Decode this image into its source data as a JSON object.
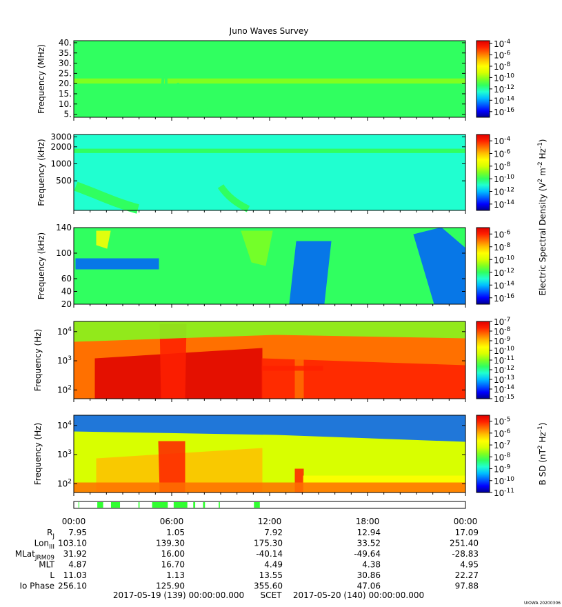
{
  "title": "Juno Waves Survey",
  "credit": "UIOWA 20200306",
  "colors": {
    "spectrum": [
      "#000090",
      "#0000ff",
      "#0060ff",
      "#00c0ff",
      "#20ffd0",
      "#30ff60",
      "#80ff20",
      "#d8ff00",
      "#ffff00",
      "#ffc000",
      "#ff7000",
      "#ff2000",
      "#e00000"
    ],
    "fill_sample": "#30ff90"
  },
  "chart_data": [
    {
      "type": "heatmap",
      "name": "mhz-panel",
      "ylabel": "Frequency (MHz)",
      "yticks": [
        "40.",
        "35.",
        "30.",
        "25.",
        "20.",
        "15.",
        "10.",
        "5."
      ],
      "ytick_values": [
        40,
        35,
        30,
        25,
        20,
        15,
        10,
        5
      ],
      "ylim": [
        3.5,
        41
      ],
      "yscale": "linear",
      "colorbar": {
        "ticks": [
          "-4",
          "-6",
          "-8",
          "-10",
          "-12",
          "-14",
          "-16"
        ],
        "tick_values": [
          -4,
          -6,
          -8,
          -10,
          -12,
          -14,
          -16
        ],
        "range": [
          -17,
          -3.5
        ]
      },
      "background_level": -11.5,
      "bands": [
        {
          "y": [
            20,
            22.5
          ],
          "level": -10.5
        }
      ]
    },
    {
      "type": "heatmap",
      "name": "khz-high-panel",
      "ylabel": "Frequency (kHz)",
      "yticks": [
        "3000",
        "2000",
        "1000",
        "500"
      ],
      "ytick_values": [
        3000,
        2000,
        1000,
        500
      ],
      "ylim": [
        150,
        3300
      ],
      "yscale": "log",
      "colorbar": {
        "ticks": [
          "-4",
          "-6",
          "-8",
          "-10",
          "-12",
          "-14"
        ],
        "tick_values": [
          -4,
          -6,
          -8,
          -10,
          -12,
          -14
        ],
        "range": [
          -15,
          -3
        ]
      },
      "background_level": -10.8,
      "bands": [
        {
          "y": [
            1550,
            1850
          ],
          "level": -10
        }
      ]
    },
    {
      "type": "heatmap",
      "name": "khz-low-panel",
      "ylabel": "Frequency (kHz)",
      "yticks": [
        "140",
        "100",
        "60",
        "40",
        "20"
      ],
      "ytick_values": [
        140,
        100,
        60,
        40,
        20
      ],
      "ylim": [
        20,
        140
      ],
      "yscale": "linear",
      "colorbar": {
        "ticks": [
          "-6",
          "-8",
          "-10",
          "-12",
          "-14",
          "-16"
        ],
        "tick_values": [
          -6,
          -8,
          -10,
          -12,
          -14,
          -16
        ],
        "range": [
          -17,
          -5
        ]
      },
      "background_level": -12.5,
      "bands": []
    },
    {
      "type": "heatmap",
      "name": "hz-e-panel",
      "ylabel": "Frequency (Hz)",
      "yticks": [
        "4",
        "3",
        "2"
      ],
      "ytick_values": [
        4,
        3,
        2
      ],
      "ylim": [
        1.7,
        4.35
      ],
      "yscale": "log-exponent",
      "colorbar": {
        "ticks": [
          "-7",
          "-8",
          "-9",
          "-10",
          "-11",
          "-12",
          "-13",
          "-14",
          "-15"
        ],
        "tick_values": [
          -7,
          -8,
          -9,
          -10,
          -11,
          -12,
          -13,
          -14,
          -15
        ],
        "range": [
          -15,
          -7
        ]
      },
      "background_level": -8.5,
      "bands": []
    },
    {
      "type": "heatmap",
      "name": "hz-b-panel",
      "ylabel": "Frequency (Hz)",
      "yticks": [
        "4",
        "3",
        "2"
      ],
      "ytick_values": [
        4,
        3,
        2
      ],
      "ylim": [
        1.7,
        4.35
      ],
      "yscale": "log-exponent",
      "colorbar": {
        "ticks": [
          "-5",
          "-6",
          "-7",
          "-8",
          "-9",
          "-10",
          "-11"
        ],
        "tick_values": [
          -5,
          -6,
          -7,
          -8,
          -9,
          -10,
          -11
        ],
        "range": [
          -11,
          -4.5
        ]
      },
      "background_level": -7,
      "bands": []
    }
  ],
  "colorbar_labels": {
    "electric": {
      "pre": "Electric Spectral Density (V",
      "exp1": "2",
      "mid": " m",
      "exp2": "-2",
      "mid2": " Hz",
      "exp3": "-1",
      "post": ")"
    },
    "magnetic": {
      "pre": "B SD (nT",
      "exp1": "2",
      "mid": " Hz",
      "exp2": "-1",
      "post": ")"
    }
  },
  "mode_bar": {
    "segments": [
      [
        0.012,
        0.014
      ],
      [
        0.06,
        0.075
      ],
      [
        0.095,
        0.118
      ],
      [
        0.165,
        0.168
      ],
      [
        0.2,
        0.24
      ],
      [
        0.255,
        0.29
      ],
      [
        0.305,
        0.31
      ],
      [
        0.33,
        0.335
      ],
      [
        0.37,
        0.373
      ],
      [
        0.46,
        0.475
      ]
    ]
  },
  "time_axis": {
    "labels": [
      "00:00",
      "06:00",
      "12:00",
      "18:00",
      "00:00"
    ],
    "values": [
      0,
      6,
      12,
      18,
      24
    ],
    "range": [
      0,
      24
    ]
  },
  "ephemeris": [
    {
      "label": "R",
      "sub": "J",
      "values": [
        "7.95",
        "1.05",
        "7.92",
        "12.94",
        "17.09"
      ]
    },
    {
      "label": "Lon",
      "sub": "III",
      "values": [
        "103.10",
        "139.30",
        "175.30",
        "33.52",
        "251.40"
      ]
    },
    {
      "label": "MLat",
      "sub": "JRM09",
      "values": [
        "31.92",
        "16.00",
        "-40.14",
        "-49.64",
        "-28.83"
      ]
    },
    {
      "label": "MLT",
      "sub": "",
      "values": [
        "4.87",
        "16.70",
        "4.49",
        "4.38",
        "4.95"
      ]
    },
    {
      "label": "L",
      "sub": "",
      "values": [
        "11.03",
        "1.13",
        "13.55",
        "30.86",
        "22.27"
      ]
    },
    {
      "label": "Io Phase",
      "sub": "",
      "values": [
        "256.10",
        "125.90",
        "355.60",
        "47.06",
        "97.88"
      ]
    }
  ],
  "footer": {
    "start": "2017-05-19 (139) 00:00:00.000",
    "scet": "SCET",
    "end": "2017-05-20 (140) 00:00:00.000"
  }
}
